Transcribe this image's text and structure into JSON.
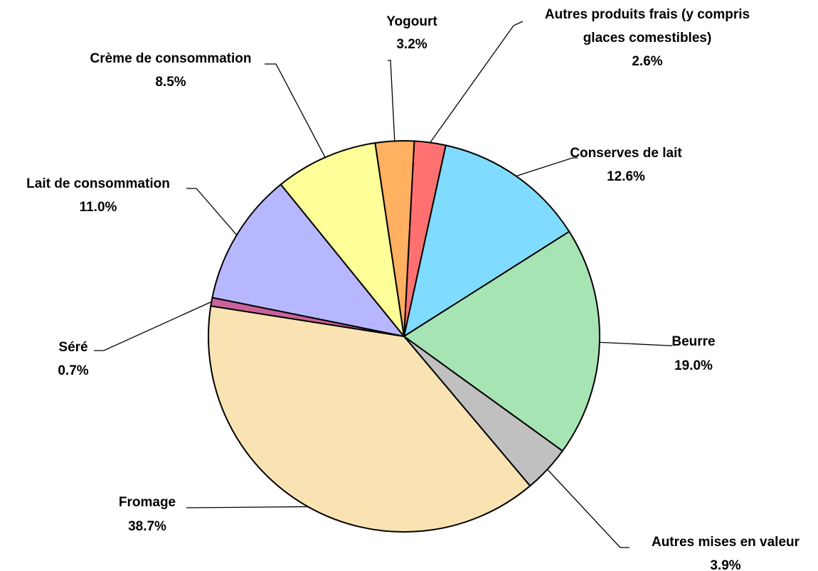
{
  "chart_data": {
    "type": "pie",
    "categories": [
      "Autres produits frais (y compris glaces comestibles)",
      "Conserves de lait",
      "Beurre",
      "Autres mises en valeur",
      "Fromage",
      "Séré",
      "Lait de consommation",
      "Crème de consommation",
      "Yogourt"
    ],
    "values": [
      2.6,
      12.6,
      19.0,
      3.9,
      38.7,
      0.7,
      11.0,
      8.5,
      3.2
    ],
    "value_labels": [
      "2.6%",
      "12.6%",
      "19.0%",
      "3.9%",
      "38.7%",
      "0.7%",
      "11.0%",
      "8.5%",
      "3.2%"
    ],
    "colors": [
      "#ff7171",
      "#80dcff",
      "#a6e4b4",
      "#c0c0c0",
      "#f9e3b2",
      "#c9639a",
      "#b7b7ff",
      "#ffff99",
      "#ffb060"
    ]
  }
}
